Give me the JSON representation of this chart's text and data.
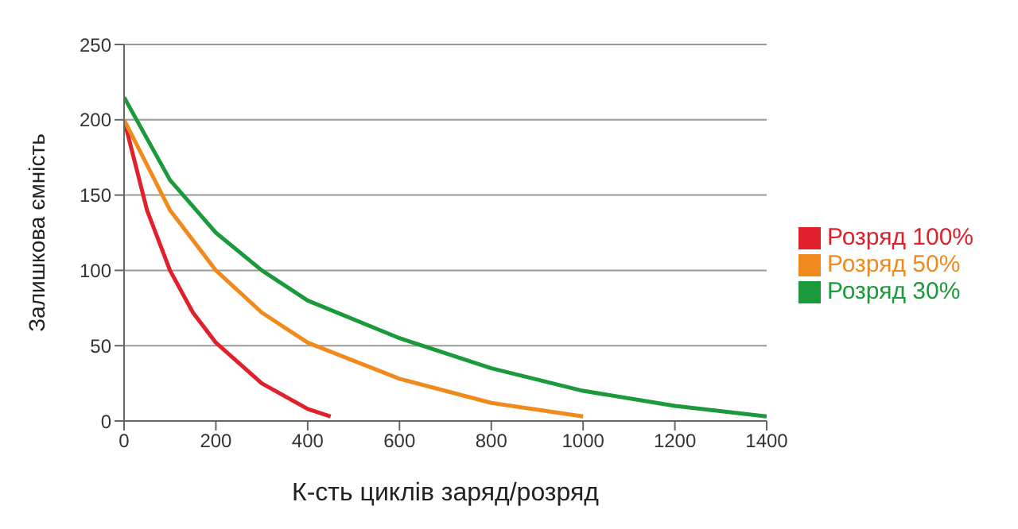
{
  "chart_data": {
    "type": "line",
    "xlabel": "К-сть циклів заряд/розряд",
    "ylabel": "Залишкова ємність",
    "xlim": [
      0,
      1400
    ],
    "xticks": [
      0,
      200,
      400,
      600,
      800,
      1000,
      1200,
      1400
    ],
    "ylim": [
      0,
      250
    ],
    "yticks": [
      0,
      50,
      100,
      150,
      200,
      250
    ],
    "grid": "y",
    "legend": "right",
    "marker": "none",
    "series": [
      {
        "name": "Розряд 100%",
        "color": "#e0202a",
        "x": [
          0,
          50,
          100,
          150,
          200,
          300,
          400,
          450
        ],
        "values": [
          200,
          140,
          100,
          72,
          52,
          25,
          8,
          3
        ]
      },
      {
        "name": "Розряд 50%",
        "color": "#f08a1c",
        "x": [
          0,
          100,
          200,
          300,
          400,
          600,
          800,
          1000
        ],
        "values": [
          200,
          140,
          100,
          72,
          52,
          28,
          12,
          3
        ]
      },
      {
        "name": "Розряд 30%",
        "color": "#1a9a3a",
        "x": [
          0,
          100,
          200,
          300,
          400,
          600,
          800,
          1000,
          1200,
          1400
        ],
        "values": [
          215,
          160,
          125,
          100,
          80,
          55,
          35,
          20,
          10,
          3
        ]
      }
    ]
  }
}
